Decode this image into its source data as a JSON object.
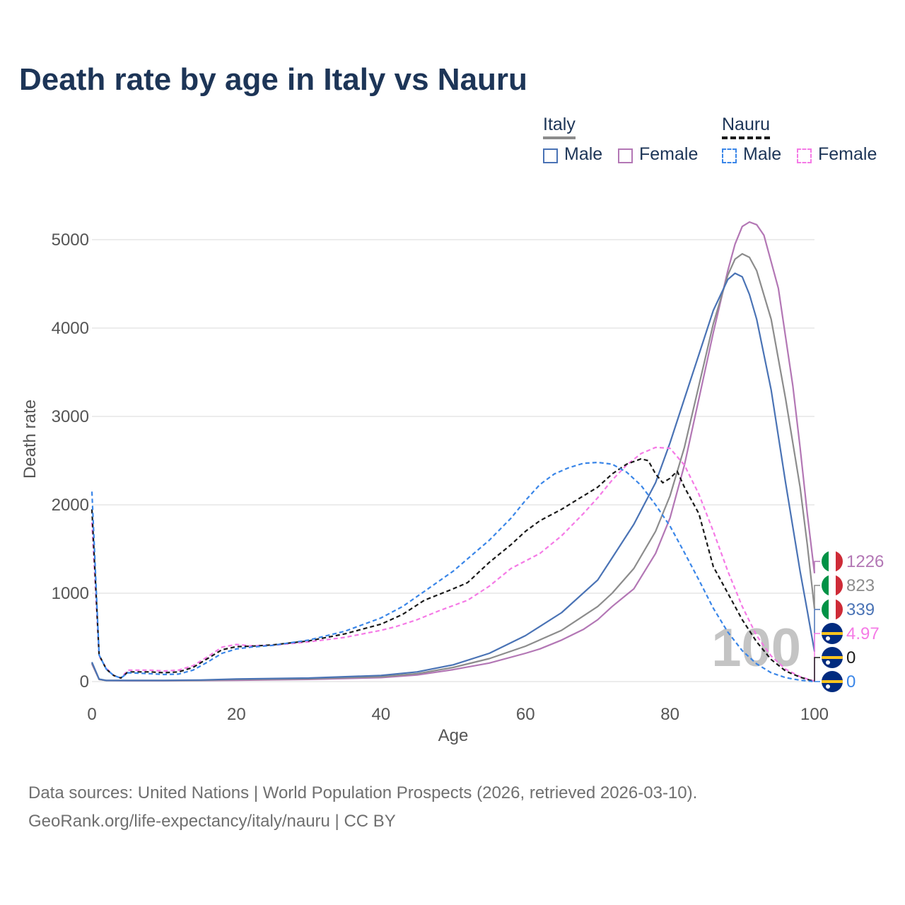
{
  "title": "Death rate by age in Italy vs Nauru",
  "footer": {
    "line1": "Data sources: United Nations | World Population Prospects (2026, retrieved 2026-03-10).",
    "line2": "GeoRank.org/life-expectancy/italy/nauru | CC BY"
  },
  "legend": {
    "groups": [
      {
        "name": "Italy",
        "style": "solid",
        "items": [
          {
            "label": "Male",
            "color": "#4a73b5"
          },
          {
            "label": "Female",
            "color": "#b377b5"
          }
        ]
      },
      {
        "name": "Nauru",
        "style": "dashed",
        "items": [
          {
            "label": "Male",
            "color": "#3a86e8"
          },
          {
            "label": "Female",
            "color": "#f57ae6"
          }
        ]
      }
    ]
  },
  "colors": {
    "italy_total": "#8c8c8c",
    "nauru_total": "#1a1a1a",
    "grid": "#e6e6e6",
    "axis_text": "#555555",
    "watermark": "#c4c4c4"
  },
  "end_labels": [
    {
      "country": "Italy",
      "series": "Female",
      "value": "1226",
      "color": "#b377b5",
      "flag": "italy-flag-icon"
    },
    {
      "country": "Italy",
      "series": "Total",
      "value": "823",
      "color": "#8c8c8c",
      "flag": "italy-flag-icon"
    },
    {
      "country": "Italy",
      "series": "Male",
      "value": "339",
      "color": "#4a73b5",
      "flag": "italy-flag-icon"
    },
    {
      "country": "Nauru",
      "series": "Female",
      "value": "4.97",
      "color": "#f57ae6",
      "flag": "nauru-flag-icon"
    },
    {
      "country": "Nauru",
      "series": "Total",
      "value": "0",
      "color": "#1a1a1a",
      "flag": "nauru-flag-icon"
    },
    {
      "country": "Nauru",
      "series": "Male",
      "value": "0",
      "color": "#3a86e8",
      "flag": "nauru-flag-icon"
    }
  ],
  "watermark": "100",
  "chart_data": {
    "type": "line",
    "title": "Death rate by age in Italy vs Nauru",
    "xlabel": "Age",
    "ylabel": "Death rate",
    "xlim": [
      0,
      100
    ],
    "ylim": [
      0,
      5400
    ],
    "xticks": [
      0,
      20,
      40,
      60,
      80,
      100
    ],
    "yticks": [
      0,
      1000,
      2000,
      3000,
      4000,
      5000
    ],
    "grid": true,
    "legend_position": "top-right",
    "series": [
      {
        "name": "Italy Female",
        "color": "#b377b5",
        "dash": "solid",
        "points": [
          [
            0,
            200
          ],
          [
            1,
            25
          ],
          [
            2,
            12
          ],
          [
            5,
            10
          ],
          [
            10,
            10
          ],
          [
            15,
            12
          ],
          [
            20,
            15
          ],
          [
            30,
            25
          ],
          [
            40,
            45
          ],
          [
            45,
            75
          ],
          [
            50,
            135
          ],
          [
            55,
            210
          ],
          [
            60,
            320
          ],
          [
            62,
            370
          ],
          [
            65,
            470
          ],
          [
            68,
            590
          ],
          [
            70,
            700
          ],
          [
            72,
            850
          ],
          [
            75,
            1050
          ],
          [
            78,
            1450
          ],
          [
            80,
            1850
          ],
          [
            82,
            2450
          ],
          [
            84,
            3200
          ],
          [
            86,
            3950
          ],
          [
            88,
            4650
          ],
          [
            89,
            4950
          ],
          [
            90,
            5150
          ],
          [
            91,
            5200
          ],
          [
            92,
            5170
          ],
          [
            93,
            5050
          ],
          [
            95,
            4450
          ],
          [
            97,
            3350
          ],
          [
            98,
            2650
          ],
          [
            99,
            1900
          ],
          [
            100,
            1226
          ]
        ]
      },
      {
        "name": "Italy Total",
        "color": "#8c8c8c",
        "dash": "solid",
        "points": [
          [
            0,
            210
          ],
          [
            1,
            25
          ],
          [
            2,
            12
          ],
          [
            5,
            12
          ],
          [
            10,
            12
          ],
          [
            15,
            14
          ],
          [
            20,
            25
          ],
          [
            30,
            32
          ],
          [
            40,
            55
          ],
          [
            45,
            90
          ],
          [
            50,
            160
          ],
          [
            55,
            260
          ],
          [
            60,
            400
          ],
          [
            65,
            580
          ],
          [
            70,
            850
          ],
          [
            72,
            1000
          ],
          [
            75,
            1280
          ],
          [
            78,
            1700
          ],
          [
            80,
            2100
          ],
          [
            82,
            2650
          ],
          [
            84,
            3350
          ],
          [
            86,
            4050
          ],
          [
            88,
            4600
          ],
          [
            89,
            4780
          ],
          [
            90,
            4840
          ],
          [
            91,
            4800
          ],
          [
            92,
            4650
          ],
          [
            94,
            4100
          ],
          [
            96,
            3200
          ],
          [
            98,
            2200
          ],
          [
            99,
            1550
          ],
          [
            100,
            823
          ]
        ]
      },
      {
        "name": "Italy Male",
        "color": "#4a73b5",
        "dash": "solid",
        "points": [
          [
            0,
            220
          ],
          [
            1,
            28
          ],
          [
            2,
            13
          ],
          [
            5,
            13
          ],
          [
            10,
            14
          ],
          [
            15,
            18
          ],
          [
            20,
            30
          ],
          [
            30,
            40
          ],
          [
            40,
            70
          ],
          [
            45,
            110
          ],
          [
            50,
            190
          ],
          [
            55,
            320
          ],
          [
            60,
            520
          ],
          [
            65,
            780
          ],
          [
            70,
            1150
          ],
          [
            72,
            1400
          ],
          [
            75,
            1780
          ],
          [
            78,
            2250
          ],
          [
            80,
            2700
          ],
          [
            82,
            3200
          ],
          [
            84,
            3700
          ],
          [
            86,
            4200
          ],
          [
            88,
            4550
          ],
          [
            89,
            4620
          ],
          [
            90,
            4580
          ],
          [
            91,
            4380
          ],
          [
            92,
            4100
          ],
          [
            94,
            3300
          ],
          [
            96,
            2250
          ],
          [
            98,
            1250
          ],
          [
            99,
            800
          ],
          [
            100,
            339
          ]
        ]
      },
      {
        "name": "Nauru Female",
        "color": "#f57ae6",
        "dash": "dashed",
        "points": [
          [
            0,
            1800
          ],
          [
            1,
            290
          ],
          [
            2,
            150
          ],
          [
            3,
            70
          ],
          [
            4,
            40
          ],
          [
            5,
            130
          ],
          [
            8,
            130
          ],
          [
            10,
            120
          ],
          [
            12,
            130
          ],
          [
            14,
            180
          ],
          [
            16,
            280
          ],
          [
            18,
            390
          ],
          [
            20,
            420
          ],
          [
            22,
            405
          ],
          [
            25,
            410
          ],
          [
            30,
            450
          ],
          [
            35,
            500
          ],
          [
            40,
            580
          ],
          [
            42,
            620
          ],
          [
            45,
            700
          ],
          [
            48,
            800
          ],
          [
            52,
            920
          ],
          [
            55,
            1080
          ],
          [
            58,
            1280
          ],
          [
            62,
            1450
          ],
          [
            65,
            1650
          ],
          [
            68,
            1900
          ],
          [
            70,
            2080
          ],
          [
            72,
            2280
          ],
          [
            74,
            2450
          ],
          [
            76,
            2580
          ],
          [
            78,
            2650
          ],
          [
            80,
            2640
          ],
          [
            82,
            2450
          ],
          [
            84,
            2120
          ],
          [
            86,
            1700
          ],
          [
            88,
            1250
          ],
          [
            90,
            850
          ],
          [
            92,
            520
          ],
          [
            94,
            290
          ],
          [
            96,
            140
          ],
          [
            98,
            55
          ],
          [
            100,
            5
          ]
        ]
      },
      {
        "name": "Nauru Total",
        "color": "#1a1a1a",
        "dash": "dashed",
        "points": [
          [
            0,
            1950
          ],
          [
            1,
            300
          ],
          [
            2,
            140
          ],
          [
            3,
            70
          ],
          [
            4,
            40
          ],
          [
            5,
            110
          ],
          [
            8,
            110
          ],
          [
            10,
            100
          ],
          [
            12,
            110
          ],
          [
            14,
            160
          ],
          [
            16,
            260
          ],
          [
            18,
            360
          ],
          [
            20,
            395
          ],
          [
            22,
            400
          ],
          [
            25,
            415
          ],
          [
            30,
            460
          ],
          [
            35,
            540
          ],
          [
            40,
            650
          ],
          [
            43,
            760
          ],
          [
            46,
            920
          ],
          [
            50,
            1050
          ],
          [
            52,
            1120
          ],
          [
            55,
            1350
          ],
          [
            58,
            1550
          ],
          [
            60,
            1700
          ],
          [
            62,
            1820
          ],
          [
            65,
            1950
          ],
          [
            68,
            2100
          ],
          [
            70,
            2200
          ],
          [
            72,
            2350
          ],
          [
            74,
            2460
          ],
          [
            76,
            2520
          ],
          [
            77,
            2500
          ],
          [
            78,
            2350
          ],
          [
            79,
            2250
          ],
          [
            80,
            2300
          ],
          [
            81,
            2380
          ],
          [
            82,
            2200
          ],
          [
            84,
            1900
          ],
          [
            85,
            1600
          ],
          [
            86,
            1300
          ],
          [
            88,
            1000
          ],
          [
            90,
            700
          ],
          [
            92,
            450
          ],
          [
            94,
            250
          ],
          [
            96,
            120
          ],
          [
            98,
            50
          ],
          [
            100,
            0
          ]
        ]
      },
      {
        "name": "Nauru Male",
        "color": "#3a86e8",
        "dash": "dashed",
        "points": [
          [
            0,
            2150
          ],
          [
            1,
            300
          ],
          [
            2,
            140
          ],
          [
            3,
            70
          ],
          [
            4,
            40
          ],
          [
            5,
            100
          ],
          [
            8,
            90
          ],
          [
            10,
            80
          ],
          [
            12,
            85
          ],
          [
            14,
            130
          ],
          [
            16,
            220
          ],
          [
            18,
            320
          ],
          [
            20,
            370
          ],
          [
            22,
            390
          ],
          [
            25,
            410
          ],
          [
            30,
            470
          ],
          [
            35,
            570
          ],
          [
            40,
            720
          ],
          [
            43,
            850
          ],
          [
            46,
            1020
          ],
          [
            50,
            1250
          ],
          [
            55,
            1600
          ],
          [
            58,
            1850
          ],
          [
            60,
            2050
          ],
          [
            62,
            2230
          ],
          [
            64,
            2350
          ],
          [
            66,
            2420
          ],
          [
            68,
            2470
          ],
          [
            70,
            2480
          ],
          [
            72,
            2460
          ],
          [
            74,
            2370
          ],
          [
            76,
            2220
          ],
          [
            78,
            2000
          ],
          [
            80,
            1760
          ],
          [
            82,
            1460
          ],
          [
            84,
            1150
          ],
          [
            86,
            830
          ],
          [
            88,
            560
          ],
          [
            90,
            350
          ],
          [
            92,
            200
          ],
          [
            94,
            100
          ],
          [
            96,
            45
          ],
          [
            98,
            15
          ],
          [
            100,
            0
          ]
        ]
      }
    ]
  }
}
